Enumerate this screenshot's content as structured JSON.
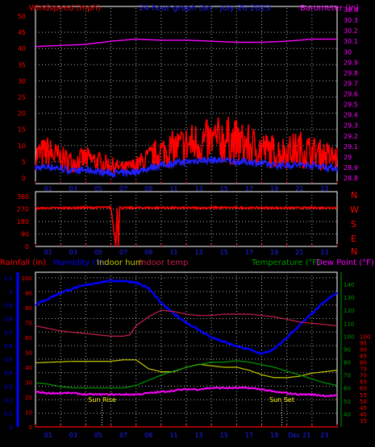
{
  "colors": {
    "background": "#000000",
    "grid": "#b0b0b0",
    "wind": "#ff0000",
    "gust": "#2020ff",
    "barometer": "#ff00ff",
    "direction": "#ff0000",
    "humidity": "#0000ff",
    "indoor_hum": "#c8c800",
    "indoor_temp": "#c81e4a",
    "temperature": "#009900",
    "dew_point": "#ff00ff",
    "rain_axis": "#0000ff",
    "axis_red": "#ff0000",
    "sun_label": "#ffff00",
    "rain_line": "#ff0000"
  },
  "chart_data": [
    {
      "type": "line",
      "title": "24 hour graph (an - July 26 2013",
      "left_axis_label": "Windspeed (mph)",
      "right_axis_label": "Barometer (in)",
      "x_tick_labels": [
        "01",
        "03",
        "05",
        "07",
        "09",
        "11",
        "13",
        "15",
        "17",
        "19",
        "21",
        "23"
      ],
      "x_range_hours": [
        0,
        24
      ],
      "ylim_left": [
        0,
        50
      ],
      "left_ticks": [
        "0",
        "5",
        "10",
        "15",
        "20",
        "25",
        "30",
        "35",
        "40",
        "45",
        "50"
      ],
      "ylim_right": [
        28.8,
        30.4
      ],
      "right_ticks": [
        "28.8",
        "28.9",
        "29",
        "29.1",
        "29.2",
        "29.3",
        "29.4",
        "29.5",
        "29.6",
        "29.7",
        "29.8",
        "29.9",
        "30",
        "30.1",
        "30.2",
        "30.3",
        "30.4"
      ],
      "series": [
        {
          "key": "wind",
          "x": [
            0,
            1,
            2,
            3,
            4,
            5,
            6,
            7,
            8,
            9,
            10,
            11,
            12,
            13,
            14,
            15,
            16,
            17,
            18,
            19,
            20,
            21,
            22,
            23,
            24
          ],
          "values": [
            7,
            8,
            6,
            5,
            6,
            5,
            4,
            3,
            4,
            6,
            8,
            9,
            10,
            11,
            11,
            12,
            11,
            10,
            9,
            8,
            8,
            9,
            8,
            7,
            6
          ]
        },
        {
          "key": "gust",
          "x": [
            0,
            1,
            2,
            3,
            4,
            5,
            6,
            7,
            8,
            9,
            10,
            11,
            12,
            13,
            14,
            15,
            16,
            17,
            18,
            19,
            20,
            21,
            22,
            23,
            24
          ],
          "values": [
            3,
            3.5,
            3,
            2,
            2.5,
            2,
            1.5,
            1.5,
            2,
            3,
            4,
            4.5,
            5,
            5.5,
            5.5,
            5.5,
            5,
            5,
            4.5,
            4,
            4,
            4,
            4,
            3.5,
            3
          ]
        },
        {
          "key": "barometer",
          "x": [
            0,
            2,
            4,
            6,
            8,
            10,
            12,
            14,
            16,
            18,
            20,
            21,
            22,
            24
          ],
          "values": [
            30.05,
            30.06,
            30.07,
            30.1,
            30.12,
            30.11,
            30.11,
            30.1,
            30.09,
            30.09,
            30.1,
            30.11,
            30.12,
            30.12
          ]
        }
      ]
    },
    {
      "type": "line",
      "title": "",
      "direction_labels": [
        "N",
        "W",
        "S",
        "E",
        "N"
      ],
      "x_tick_labels": [
        "01",
        "03",
        "05",
        "07",
        "09",
        "11",
        "13",
        "15",
        "17",
        "19",
        "21",
        "23"
      ],
      "x_range_hours": [
        0,
        24
      ],
      "ylim": [
        0,
        360
      ],
      "y_ticks": [
        "0",
        "90",
        "180",
        "270",
        "360"
      ],
      "series": [
        {
          "key": "direction",
          "x": [
            0,
            2,
            4,
            6,
            6.4,
            6.5,
            6.6,
            6.7,
            6.8,
            7,
            9,
            12,
            15,
            18,
            21,
            24
          ],
          "values": [
            275,
            278,
            280,
            282,
            0,
            280,
            0,
            285,
            280,
            278,
            280,
            278,
            280,
            279,
            278,
            280
          ]
        }
      ]
    },
    {
      "type": "line",
      "title": "",
      "legend": {
        "rainfall": "Rainfall (in)",
        "humidity": "Humidity (%)",
        "indoor_hum": "Indoor hum",
        "indoor_temp": "Indoor temp",
        "temperature": "Temperature (°F)",
        "dew_point": "Dew Point (°F)"
      },
      "x_tick_labels": [
        "01",
        "03",
        "05",
        "07",
        "09",
        "11",
        "13",
        "15",
        "17",
        "19",
        "Dec 21",
        "23"
      ],
      "x_range_hours": [
        0,
        24
      ],
      "rain_axis": {
        "ylim": [
          0,
          1.1
        ],
        "ticks": [
          "0",
          "0.1",
          "0.2",
          "0.3",
          "0.4",
          "0.5",
          "0.6",
          "0.7",
          "0.8",
          "0.9",
          "1",
          "1.1"
        ]
      },
      "humidity_axis": {
        "ylim": [
          0,
          100
        ],
        "ticks": [
          "0",
          "10",
          "20",
          "30",
          "40",
          "50",
          "60",
          "70",
          "80",
          "90",
          "100"
        ]
      },
      "temp_axis_outer": {
        "ylim": [
          30,
          145
        ],
        "ticks": [
          "35",
          "40",
          "45",
          "50",
          "55",
          "60",
          "65",
          "70",
          "75",
          "80",
          "85",
          "90",
          "95",
          "100"
        ]
      },
      "temp_axis_inner": {
        "ticks": [
          "40",
          "50",
          "60",
          "70",
          "80",
          "90",
          "100",
          "110",
          "120",
          "130",
          "140"
        ]
      },
      "annotations": [
        {
          "label": "Sun Rise",
          "hour": 5.3
        },
        {
          "label": "Sun Set",
          "hour": 19.6
        }
      ],
      "series": [
        {
          "key": "humidity",
          "x": [
            0,
            1,
            2,
            3,
            4,
            5,
            6,
            7,
            8,
            9,
            10,
            11,
            12,
            13,
            14,
            15,
            16,
            17,
            18,
            19,
            20,
            21,
            22,
            23,
            24
          ],
          "values": [
            82,
            86,
            90,
            93,
            95,
            97,
            98,
            98,
            97,
            93,
            83,
            76,
            70,
            65,
            60,
            57,
            54,
            52,
            49,
            52,
            60,
            68,
            76,
            84,
            90
          ]
        },
        {
          "key": "indoor_hum",
          "x": [
            0,
            3,
            6,
            7,
            8,
            9,
            10,
            11,
            12,
            13,
            14,
            15,
            16,
            17,
            18,
            19,
            20,
            21,
            22,
            24
          ],
          "values": [
            43,
            44,
            44,
            45,
            45,
            39,
            37,
            37,
            40,
            42,
            41,
            40,
            40,
            38,
            35,
            33,
            33,
            34,
            36,
            38
          ]
        },
        {
          "key": "indoor_temp",
          "x": [
            0,
            1,
            2,
            3,
            4,
            5,
            6,
            7,
            7.5,
            8,
            9,
            10,
            11,
            12,
            13,
            14,
            15,
            16,
            17,
            18,
            19,
            20,
            21,
            22,
            23,
            24
          ],
          "values": [
            108,
            106,
            104,
            103,
            102,
            101,
            100,
            100,
            101,
            108,
            115,
            120,
            119,
            117,
            116,
            116,
            117,
            117,
            117,
            116,
            115,
            113,
            111,
            110,
            109,
            108
          ]
        },
        {
          "key": "temperature",
          "x": [
            0,
            1,
            2,
            3,
            4,
            5,
            6,
            7,
            8,
            9,
            10,
            11,
            12,
            13,
            14,
            15,
            16,
            17,
            18,
            19,
            20,
            21,
            22,
            23,
            24
          ],
          "values": [
            64,
            63,
            61,
            60,
            60,
            60,
            60,
            60,
            62,
            66,
            70,
            73,
            76,
            78,
            80,
            80,
            81,
            80,
            78,
            76,
            73,
            70,
            67,
            64,
            62
          ]
        },
        {
          "key": "dew_point",
          "x": [
            0,
            1,
            2,
            3,
            4,
            5,
            6,
            7,
            8,
            9,
            10,
            11,
            12,
            13,
            14,
            15,
            16,
            17,
            18,
            19,
            20,
            21,
            22,
            23,
            24
          ],
          "values": [
            57,
            56,
            56,
            56,
            55,
            55,
            55,
            55,
            55,
            56,
            57,
            58,
            59,
            59,
            60,
            60,
            60,
            60,
            59,
            57,
            56,
            55,
            55,
            54,
            54
          ]
        },
        {
          "key": "rainfall",
          "x": [
            0,
            24
          ],
          "values": [
            0,
            0
          ]
        }
      ]
    }
  ]
}
